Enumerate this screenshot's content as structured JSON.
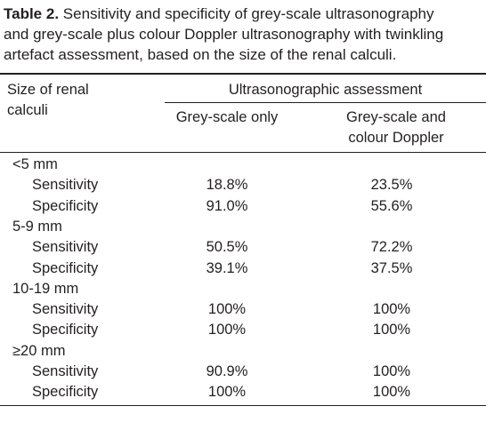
{
  "caption": {
    "label": "Table 2.",
    "lines": [
      "Sensitivity and specificity of grey-scale ultrasonography",
      "and grey-scale plus colour Doppler ultrasonography with twinkling",
      "artefact assessment, based on the size of the renal calculi."
    ]
  },
  "table": {
    "header": {
      "size": "Size of renal calculi",
      "group": "Ultrasonographic assessment",
      "columns": [
        "Grey-scale only",
        "Grey-scale and colour Doppler"
      ]
    },
    "groups": [
      {
        "label": "<5 mm",
        "rows": [
          [
            "Sensitivity",
            "18.8%",
            "23.5%"
          ],
          [
            "Specificity",
            "91.0%",
            "55.6%"
          ]
        ]
      },
      {
        "label": "5-9 mm",
        "rows": [
          [
            "Sensitivity",
            "50.5%",
            "72.2%"
          ],
          [
            "Specificity",
            "39.1%",
            "37.5%"
          ]
        ]
      },
      {
        "label": "10-19 mm",
        "rows": [
          [
            "Sensitivity",
            "100%",
            "100%"
          ],
          [
            "Specificity",
            "100%",
            "100%"
          ]
        ]
      },
      {
        "label": "≥20 mm",
        "rows": [
          [
            "Sensitivity",
            "90.9%",
            "100%"
          ],
          [
            "Specificity",
            "100%",
            "100%"
          ]
        ]
      }
    ]
  }
}
